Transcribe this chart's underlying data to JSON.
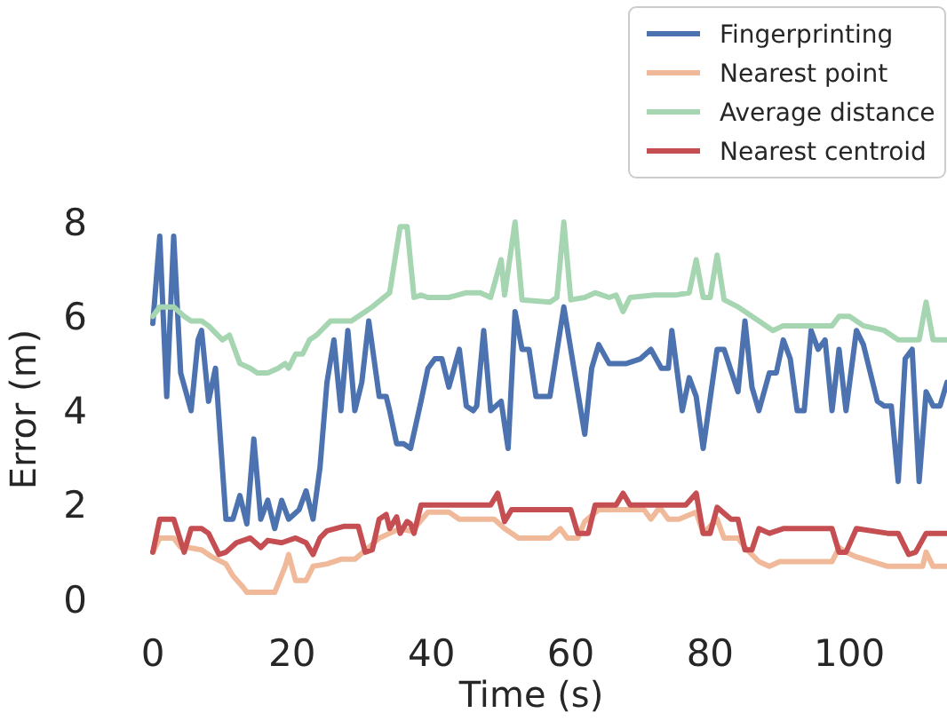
{
  "chart_data": {
    "type": "line",
    "xlabel": "Time (s)",
    "ylabel": "Error (m)",
    "xlim": [
      0,
      114
    ],
    "ylim": [
      0,
      8
    ],
    "xticks": [
      0,
      20,
      40,
      60,
      80,
      100
    ],
    "yticks": [
      0,
      2,
      4,
      6,
      8
    ],
    "grid": false,
    "legend": "top right",
    "line_style": "solid",
    "marker": "none",
    "series": [
      {
        "name": "Fingerprinting",
        "color": "#4c72b0",
        "x": [
          0,
          1,
          2,
          3,
          4,
          5.5,
          6.5,
          7,
          8,
          9,
          10.5,
          11.5,
          12.5,
          13.5,
          14.5,
          15.5,
          16.5,
          17.5,
          18.5,
          19.5,
          21,
          22,
          23,
          24,
          25,
          26,
          27,
          28,
          29,
          30,
          31,
          32.5,
          33.5,
          34,
          35,
          36,
          37,
          38.5,
          39.5,
          40.5,
          41.5,
          42.5,
          44,
          45,
          46,
          46.5,
          47.5,
          48.5,
          50,
          51,
          52,
          53,
          54,
          55,
          57,
          59,
          60,
          62,
          63,
          64,
          65.5,
          68,
          70,
          71.5,
          73,
          74,
          74.5,
          76,
          77,
          78,
          79,
          81,
          82,
          84,
          85,
          86,
          87,
          88.5,
          89.5,
          90.5,
          91.5,
          92.5,
          93.5,
          94.5,
          95.5,
          96.5,
          97.5,
          98.5,
          99.5,
          101,
          102,
          104,
          105,
          106,
          107,
          108,
          109,
          110,
          111,
          112,
          113,
          114
        ],
        "values": [
          5.85,
          7.7,
          4.3,
          7.7,
          4.8,
          4.0,
          5.5,
          5.7,
          4.2,
          4.9,
          1.7,
          1.7,
          2.2,
          1.6,
          3.4,
          1.7,
          2.1,
          1.5,
          2.1,
          1.7,
          1.9,
          2.3,
          1.7,
          2.8,
          4.6,
          5.5,
          4.0,
          5.7,
          4.0,
          4.6,
          5.9,
          4.3,
          4.3,
          4.0,
          3.3,
          3.3,
          3.2,
          4.2,
          4.9,
          5.1,
          5.1,
          4.5,
          5.3,
          4.1,
          4.0,
          4.1,
          5.7,
          4.0,
          4.2,
          3.2,
          6.1,
          5.3,
          5.3,
          4.3,
          4.3,
          6.2,
          5.3,
          3.5,
          4.9,
          5.4,
          5.0,
          5.0,
          5.1,
          5.3,
          4.9,
          4.9,
          5.7,
          4.0,
          4.7,
          4.3,
          3.2,
          5.3,
          5.3,
          4.4,
          5.9,
          4.5,
          4.0,
          4.8,
          4.8,
          5.5,
          5.1,
          4.0,
          4.0,
          5.7,
          5.3,
          5.5,
          4.0,
          5.3,
          4.0,
          5.7,
          5.4,
          4.2,
          4.1,
          4.1,
          2.5,
          5.1,
          5.3,
          2.5,
          4.4,
          4.1,
          4.1,
          4.6
        ]
      },
      {
        "name": "Nearest point",
        "color": "#f0b99a",
        "x": [
          0,
          1,
          3,
          4,
          5,
          7,
          8.5,
          10.5,
          11.5,
          13,
          13.5,
          17.5,
          19,
          19.5,
          20.5,
          22,
          23,
          25,
          27,
          29,
          31,
          32.5,
          34,
          35.5,
          37,
          37.5,
          39.5,
          42.5,
          44,
          49,
          50.5,
          52.5,
          57,
          58.5,
          59.5,
          61,
          62,
          64,
          70.5,
          71.5,
          72.5,
          73,
          74,
          75.5,
          78,
          79,
          81,
          82,
          84,
          85,
          87,
          88.5,
          90,
          97.5,
          98.5,
          99.5,
          101,
          105.5,
          110.5,
          111,
          112,
          114
        ],
        "values": [
          1.0,
          1.3,
          1.3,
          1.1,
          1.1,
          1.05,
          0.9,
          0.75,
          0.5,
          0.25,
          0.15,
          0.15,
          0.7,
          0.95,
          0.4,
          0.4,
          0.7,
          0.75,
          0.85,
          0.85,
          1.1,
          1.3,
          1.4,
          1.5,
          1.45,
          1.5,
          1.85,
          1.85,
          1.7,
          1.7,
          1.5,
          1.3,
          1.3,
          1.5,
          1.3,
          1.3,
          1.65,
          1.9,
          1.9,
          1.7,
          1.9,
          1.9,
          1.7,
          1.7,
          1.85,
          1.4,
          1.7,
          1.3,
          1.3,
          1.1,
          0.8,
          0.7,
          0.8,
          0.8,
          1.1,
          1.0,
          0.9,
          0.7,
          0.7,
          1.0,
          0.7,
          0.7
        ]
      },
      {
        "name": "Average distance",
        "color": "#a6d5b2",
        "x": [
          0,
          1,
          3,
          4.5,
          5.5,
          7,
          8,
          10,
          11,
          12.5,
          14,
          15,
          16.5,
          18,
          19,
          19.5,
          20.5,
          21.5,
          22.5,
          23.5,
          25.5,
          28.5,
          30.5,
          31.5,
          34,
          35.5,
          36.5,
          37.5,
          38.5,
          39.5,
          42.5,
          45,
          47,
          48.5,
          50,
          50.5,
          52,
          53,
          57,
          58,
          59,
          60,
          62,
          63.5,
          65.5,
          66.5,
          67.5,
          68.5,
          72,
          75,
          77,
          78,
          79,
          80,
          81,
          82,
          84,
          86,
          87,
          89,
          90.5,
          97.5,
          98.5,
          100,
          102,
          105,
          107,
          110,
          111,
          112,
          114
        ],
        "values": [
          6.0,
          6.2,
          6.2,
          6.0,
          5.9,
          5.9,
          5.8,
          5.5,
          5.6,
          5.0,
          4.9,
          4.8,
          4.8,
          4.9,
          5.0,
          4.9,
          5.2,
          5.2,
          5.5,
          5.6,
          5.9,
          5.9,
          6.1,
          6.2,
          6.5,
          7.9,
          7.9,
          6.4,
          6.45,
          6.4,
          6.4,
          6.5,
          6.5,
          6.4,
          7.2,
          6.45,
          8.0,
          6.35,
          6.3,
          6.4,
          8.0,
          6.35,
          6.4,
          6.5,
          6.4,
          6.45,
          6.1,
          6.4,
          6.45,
          6.45,
          6.5,
          7.2,
          6.4,
          6.4,
          7.3,
          6.35,
          6.2,
          6.0,
          5.9,
          5.7,
          5.8,
          5.8,
          6.0,
          6.0,
          5.8,
          5.7,
          5.5,
          5.5,
          6.3,
          5.5,
          5.5
        ]
      },
      {
        "name": "Nearest centroid",
        "color": "#c44e52",
        "x": [
          0,
          1,
          3,
          4.5,
          5.5,
          7,
          8,
          9.5,
          10.5,
          12,
          14,
          15.5,
          16.5,
          18.5,
          20.5,
          22,
          23,
          24,
          25,
          27.5,
          29.5,
          30.5,
          31.5,
          32.5,
          33.5,
          34,
          35,
          35.5,
          36.5,
          37,
          37.5,
          38.5,
          48.5,
          49.5,
          50.5,
          51.5,
          60,
          61,
          62.5,
          63.5,
          66.5,
          67.5,
          68.5,
          76.5,
          78,
          79,
          80,
          81,
          83,
          84,
          85,
          86,
          87,
          88.5,
          90.5,
          97.5,
          98.5,
          99.5,
          101,
          105.5,
          107,
          108.5,
          109.5,
          111,
          114
        ],
        "values": [
          1.0,
          1.7,
          1.7,
          1.0,
          1.5,
          1.5,
          1.4,
          0.95,
          1.0,
          1.2,
          1.3,
          1.1,
          1.25,
          1.2,
          1.3,
          1.2,
          0.95,
          1.3,
          1.45,
          1.55,
          1.55,
          1.0,
          1.05,
          1.7,
          1.8,
          1.5,
          1.75,
          1.4,
          1.65,
          1.6,
          1.4,
          2.0,
          2.0,
          2.25,
          1.65,
          1.9,
          1.9,
          1.4,
          1.4,
          2.0,
          2.0,
          2.25,
          2.0,
          2.0,
          2.25,
          1.4,
          1.4,
          1.95,
          1.7,
          1.7,
          1.05,
          1.05,
          1.5,
          1.4,
          1.5,
          1.5,
          1.0,
          1.0,
          1.5,
          1.4,
          1.4,
          0.95,
          1.0,
          1.4,
          1.4
        ]
      }
    ]
  }
}
